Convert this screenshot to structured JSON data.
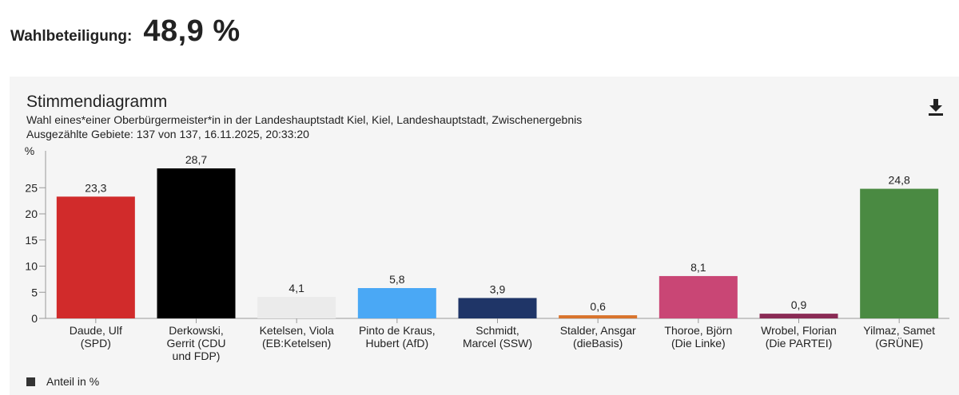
{
  "turnout": {
    "label": "Wahlbeteiligung:",
    "value": "48,9 %"
  },
  "panel": {
    "title": "Stimmendiagramm",
    "subtitle": "Wahl eines*einer Oberbürgermeister*in in der Landeshauptstadt Kiel, Kiel, Landeshauptstadt, Zwischenergebnis",
    "counted": "Ausgezählte Gebiete: 137 von 137, 16.11.2025, 20:33:20",
    "download_icon": "download-icon",
    "legend_label": "Anteil in %"
  },
  "chart_data": {
    "type": "bar",
    "ylabel": "%",
    "ylim": [
      0,
      30
    ],
    "yticks": [
      0,
      5,
      10,
      15,
      20,
      25
    ],
    "categories": [
      [
        "Daude, Ulf",
        "(SPD)"
      ],
      [
        "Derkowski,",
        "Gerrit (CDU",
        "und FDP)"
      ],
      [
        "Ketelsen, Viola",
        "(EB:Ketelsen)"
      ],
      [
        "Pinto de Kraus,",
        "Hubert (AfD)"
      ],
      [
        "Schmidt,",
        "Marcel (SSW)"
      ],
      [
        "Stalder, Ansgar",
        "(dieBasis)"
      ],
      [
        "Thoroe, Björn",
        "(Die Linke)"
      ],
      [
        "Wrobel, Florian",
        "(Die PARTEI)"
      ],
      [
        "Yilmaz, Samet",
        "(GRÜNE)"
      ]
    ],
    "values": [
      23.3,
      28.7,
      4.1,
      5.8,
      3.9,
      0.6,
      8.1,
      0.9,
      24.8
    ],
    "value_labels": [
      "23,3",
      "28,7",
      "4,1",
      "5,8",
      "3,9",
      "0,6",
      "8,1",
      "0,9",
      "24,8"
    ],
    "colors": [
      "#d12b2b",
      "#000000",
      "#ebebeb",
      "#4aa8f5",
      "#1f3567",
      "#d9742c",
      "#c94675",
      "#8a2b55",
      "#4a8a42"
    ],
    "legend": [
      "Anteil in %"
    ]
  }
}
